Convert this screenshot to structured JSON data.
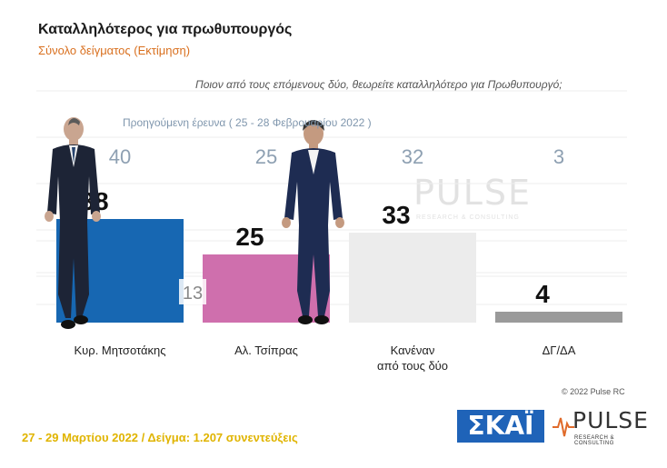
{
  "header": {
    "title": "Καταλληλότερος για πρωθυπουργός",
    "subtitle": "Σύνολο δείγματος (Εκτίμηση)",
    "question": "Ποιον από τους επόμενους δύο, θεωρείτε καταλληλότερο για Πρωθυπουργό;",
    "previous_label": "Προηγούμενη έρευνα ( 25 - 28 Φεβρουαρίου 2022 )"
  },
  "chart_data": {
    "type": "bar",
    "categories": [
      "Κυρ. Μητσοτάκης",
      "Αλ. Τσίπρας",
      "Κανέναν από τους δύο",
      "ΔΓ/ΔΑ"
    ],
    "category_lines": [
      [
        "Κυρ. Μητσοτάκης"
      ],
      [
        "Αλ. Τσίπρας"
      ],
      [
        "Κανέναν",
        "από τους δύο"
      ],
      [
        "ΔΓ/ΔΑ"
      ]
    ],
    "values": [
      38,
      25,
      33,
      4
    ],
    "previous_values": [
      40,
      25,
      32,
      3
    ],
    "inner_value_labels": [
      "",
      "13",
      "",
      ""
    ],
    "colors": [
      "#1767b2",
      "#cf6fad",
      "#ececec",
      "#9a9a9a"
    ],
    "ylim": [
      0,
      50
    ],
    "grid": true
  },
  "watermark": {
    "text": "PULSE",
    "sub": "RESEARCH & CONSULTING"
  },
  "copyright": "© 2022 Pulse RC",
  "footer": "27 - 29 Μαρτίου 2022 / Δείγμα: 1.207 συνεντεύξεις",
  "logos": {
    "skai": "ΣΚΑΪ",
    "pulse": "PULSE",
    "pulse_sub": "RESEARCH & CONSULTING"
  }
}
